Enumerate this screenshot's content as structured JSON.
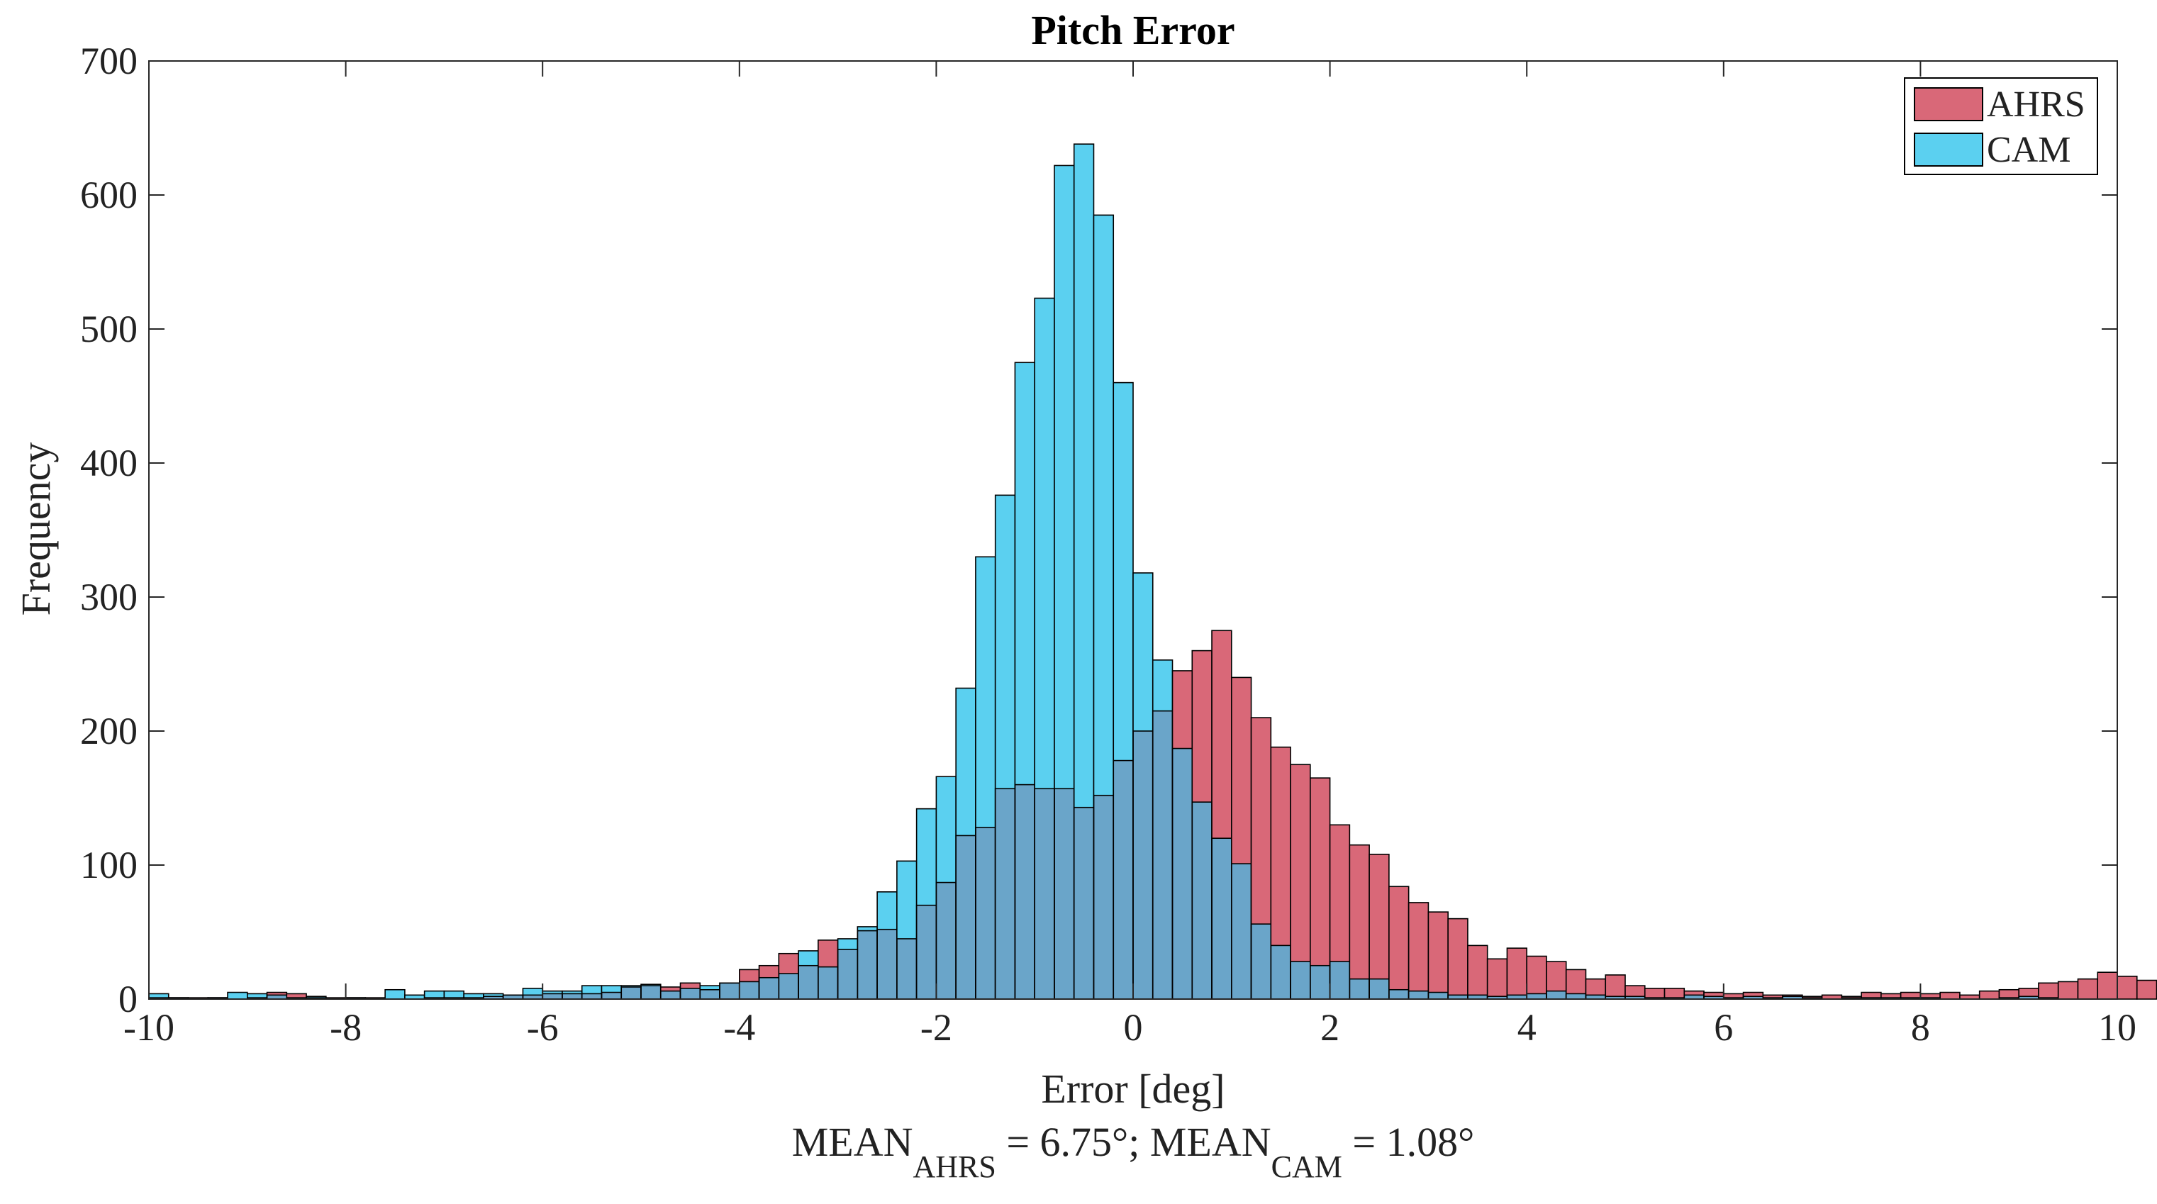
{
  "chart_data": {
    "type": "bar",
    "title": "Pitch Error",
    "xlabel": "Error [deg]",
    "ylabel": "Frequency",
    "xlim": [
      -10,
      10
    ],
    "ylim": [
      0,
      700
    ],
    "xticks": [
      "-10",
      "-8",
      "-6",
      "-4",
      "-2",
      "0",
      "2",
      "4",
      "6",
      "8",
      "10"
    ],
    "yticks": [
      "0",
      "100",
      "200",
      "300",
      "400",
      "500",
      "600",
      "700"
    ],
    "bin_width": 0.2,
    "bin_start": -10,
    "grid": false,
    "legend_position": "top-right",
    "series": [
      {
        "name": "AHRS",
        "color": "#d96878",
        "values": [
          1,
          1,
          1,
          1,
          0,
          1,
          5,
          4,
          1,
          1,
          1,
          1,
          0,
          0,
          1,
          1,
          1,
          2,
          3,
          3,
          4,
          4,
          4,
          5,
          9,
          10,
          9,
          12,
          7,
          12,
          22,
          25,
          34,
          25,
          44,
          37,
          51,
          52,
          45,
          70,
          87,
          122,
          128,
          157,
          160,
          157,
          157,
          143,
          152,
          178,
          200,
          215,
          245,
          260,
          275,
          240,
          210,
          188,
          175,
          165,
          130,
          115,
          108,
          84,
          72,
          65,
          60,
          40,
          30,
          38,
          32,
          28,
          22,
          15,
          18,
          10,
          8,
          8,
          6,
          5,
          4,
          5,
          3,
          3,
          2,
          3,
          2,
          5,
          4,
          5,
          4,
          5,
          3,
          6,
          7,
          8,
          12,
          13,
          15,
          20,
          17,
          14
        ]
      },
      {
        "name": "CAM",
        "color": "#5bd0f0",
        "values": [
          4,
          1,
          0,
          1,
          5,
          4,
          3,
          1,
          2,
          0,
          1,
          0,
          7,
          3,
          6,
          6,
          4,
          4,
          3,
          8,
          6,
          6,
          10,
          10,
          10,
          11,
          6,
          8,
          10,
          12,
          13,
          16,
          19,
          36,
          24,
          45,
          54,
          80,
          103,
          142,
          166,
          232,
          330,
          376,
          475,
          523,
          622,
          638,
          585,
          460,
          318,
          253,
          187,
          147,
          120,
          101,
          56,
          40,
          28,
          25,
          28,
          15,
          15,
          7,
          6,
          5,
          3,
          3,
          2,
          3,
          4,
          6,
          4,
          3,
          2,
          2,
          1,
          1,
          3,
          2,
          1,
          2,
          1,
          2,
          1,
          0,
          1,
          1,
          1,
          1,
          1,
          0,
          0,
          0,
          1,
          2,
          1,
          0,
          0,
          0,
          0,
          0
        ],
        "overlap_color": "#6aa5c9"
      }
    ],
    "annotation": {
      "text": "MEAN",
      "ahrs_sub": "AHRS",
      "mid": " = 6.75°; MEAN",
      "cam_sub": "CAM",
      "end": " = 1.08°"
    }
  }
}
